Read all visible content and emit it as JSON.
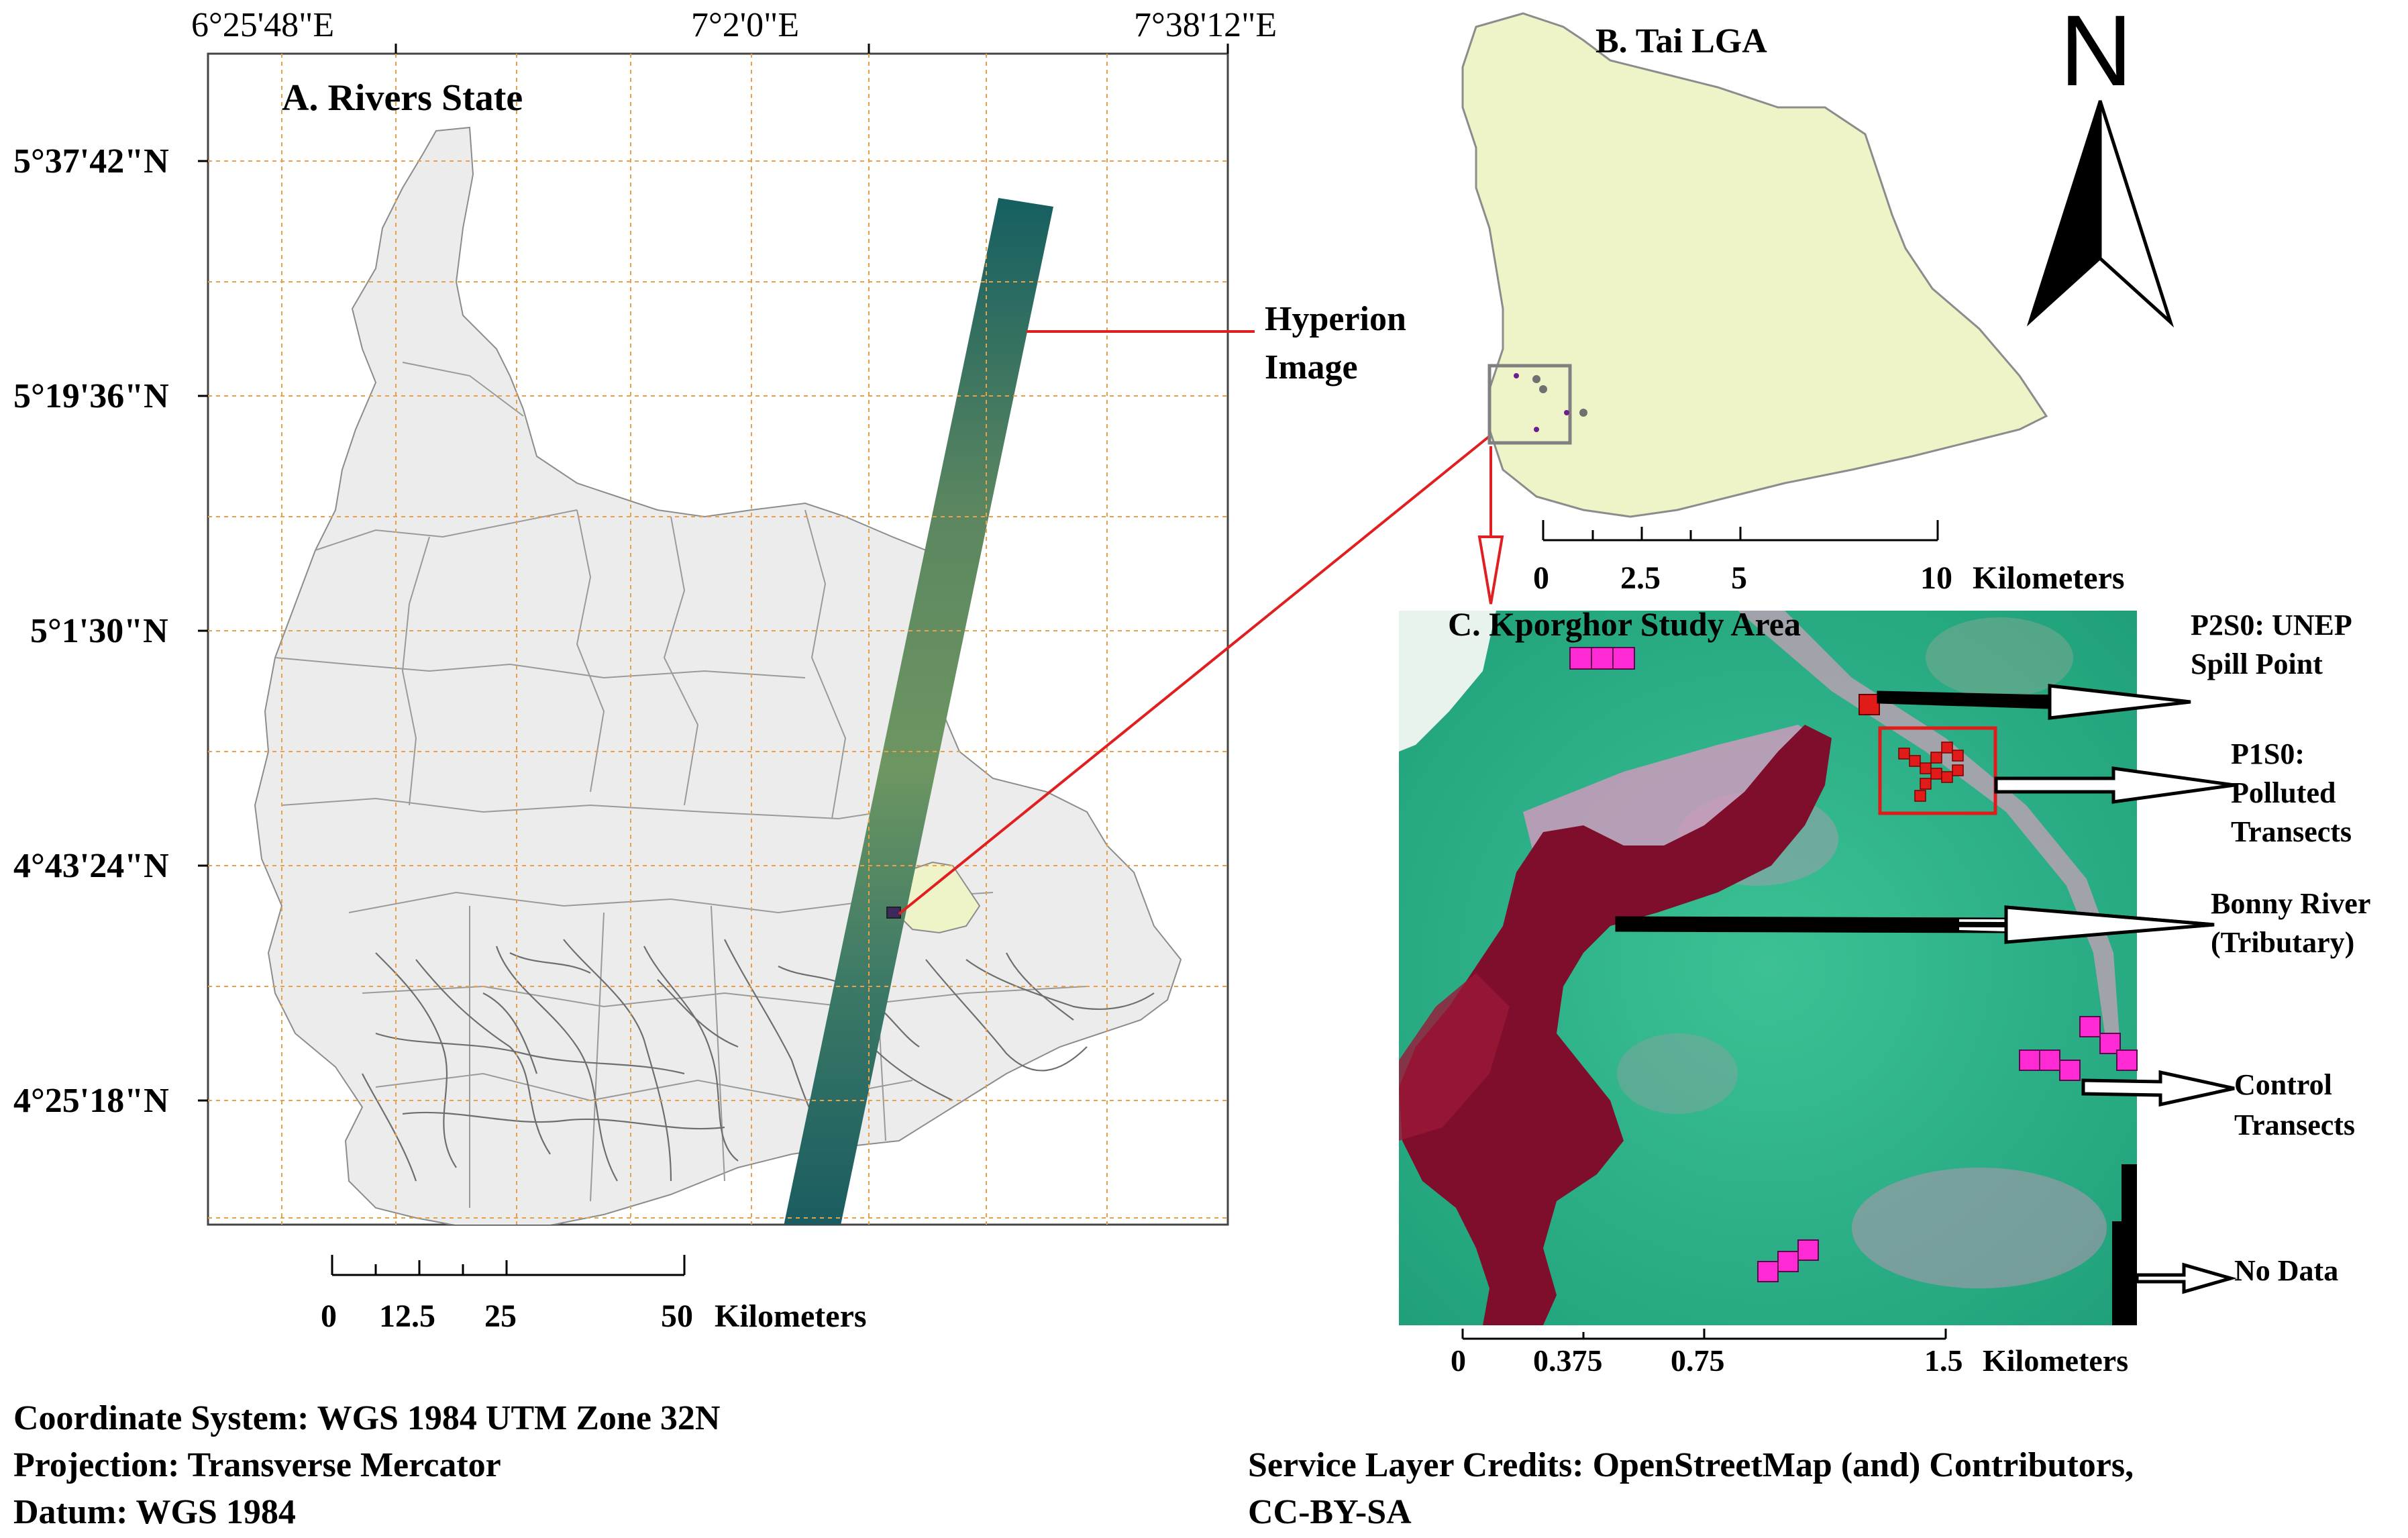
{
  "panelA": {
    "title": "A. Rivers State",
    "lon_labels": [
      "6°25'48\"E",
      "7°2'0\"E",
      "7°38'12\"E"
    ],
    "lat_labels": [
      "5°37'42\"N",
      "5°19'36\"N",
      "5°1'30\"N",
      "4°43'24\"N",
      "4°25'18\"N"
    ],
    "hyperion_label_1": "Hyperion",
    "hyperion_label_2": "Image",
    "scale_ticks": [
      "0",
      "12.5",
      "25",
      "50"
    ],
    "scale_unit": "Kilometers",
    "colors": {
      "land": "#ececec",
      "grid": "#e8a04a",
      "hyperion": "#2e6b62",
      "tai_lga": "#eef3c8"
    }
  },
  "panelB": {
    "title": "B. Tai LGA",
    "scale_ticks": [
      "0",
      "2.5",
      "5",
      "10"
    ],
    "scale_unit": "Kilometers",
    "colors": {
      "land": "#eef3c8",
      "inset_box": "#808080"
    }
  },
  "panelC": {
    "title": "C. Kporghor Study Area",
    "scale_ticks": [
      "0",
      "0.375",
      "0.75",
      "1.5"
    ],
    "scale_unit": "Kilometers",
    "annotations": {
      "spill_1": "P2S0: UNEP",
      "spill_2": "Spill Point",
      "polluted_1": "P1S0:",
      "polluted_2": "Polluted",
      "polluted_3": "Transects",
      "river_1": "Bonny River",
      "river_2": "(Tributary)",
      "control_1": "Control",
      "control_2": "Transects",
      "nodata": "No Data"
    },
    "colors": {
      "vegetation": "#2fb88a",
      "river": "#8b1030",
      "polluted": "#e11a1a",
      "control": "#ff2ad4",
      "nodata": "#000000"
    }
  },
  "north_arrow": {
    "label": "N"
  },
  "footer": {
    "coord_system": "Coordinate System: WGS 1984 UTM Zone 32N",
    "projection": "Projection: Transverse Mercator",
    "datum": "Datum: WGS 1984",
    "credits_1": "Service Layer Credits: OpenStreetMap (and) Contributors,",
    "credits_2": "CC-BY-SA"
  }
}
